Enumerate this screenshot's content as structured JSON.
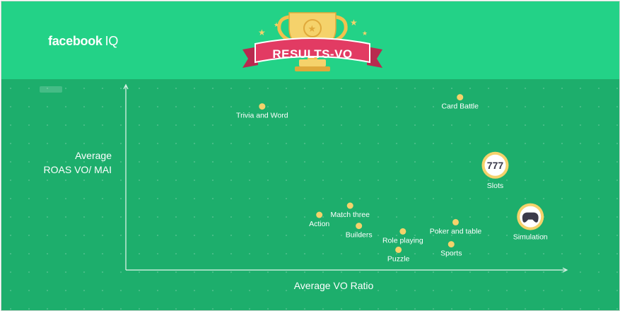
{
  "brand": {
    "name": "facebook",
    "suffix": "IQ"
  },
  "banner": {
    "text": "RESULTS-VO"
  },
  "chart_data": {
    "type": "scatter",
    "xlabel": "Average VO Ratio",
    "ylabel_line1": "Average",
    "ylabel_line2": "ROAS VO/ MAI",
    "xlim": [
      0,
      100
    ],
    "ylim": [
      0,
      100
    ],
    "grid": "dotted",
    "points": [
      {
        "label": "Trivia and Word",
        "x": 31,
        "y": 89,
        "marker": "dot"
      },
      {
        "label": "Card Battle",
        "x": 76,
        "y": 94,
        "marker": "dot"
      },
      {
        "label": "Slots",
        "x": 84,
        "y": 57,
        "marker": "slots-icon"
      },
      {
        "label": "Match three",
        "x": 51,
        "y": 35,
        "marker": "dot"
      },
      {
        "label": "Action",
        "x": 44,
        "y": 30,
        "marker": "dot"
      },
      {
        "label": "Builders",
        "x": 53,
        "y": 24,
        "marker": "dot"
      },
      {
        "label": "Poker and table",
        "x": 75,
        "y": 26,
        "marker": "dot"
      },
      {
        "label": "Role playing",
        "x": 63,
        "y": 21,
        "marker": "dot"
      },
      {
        "label": "Simulation",
        "x": 92,
        "y": 29,
        "marker": "gamepad-icon"
      },
      {
        "label": "Sports",
        "x": 74,
        "y": 14,
        "marker": "dot"
      },
      {
        "label": "Puzzle",
        "x": 62,
        "y": 11,
        "marker": "dot"
      }
    ],
    "colors": {
      "point": "#f5d26b",
      "axis": "#e8f7ef",
      "background": "#1dae6c",
      "header": "#23d287",
      "ribbon": "#e23b63"
    }
  }
}
